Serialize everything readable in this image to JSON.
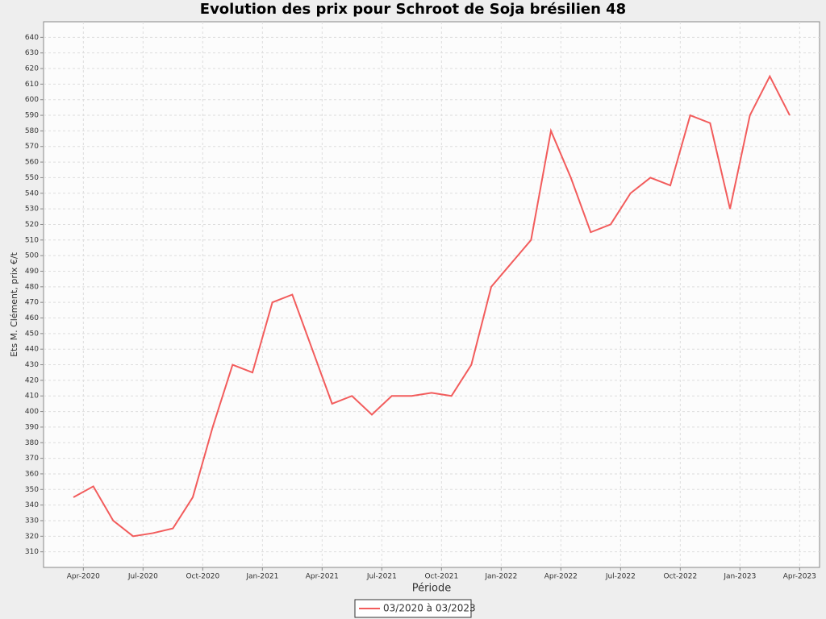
{
  "chart_data": {
    "type": "line",
    "title": "Evolution des prix pour Schroot de Soja brésilien 48",
    "x_label": "Période",
    "y_label": "Ets M. Clément, prix €/t",
    "x": [
      "2020-03",
      "2020-04",
      "2020-05",
      "2020-06",
      "2020-07",
      "2020-08",
      "2020-09",
      "2020-10",
      "2020-11",
      "2020-12",
      "2021-01",
      "2021-02",
      "2021-03",
      "2021-04",
      "2021-05",
      "2021-06",
      "2021-07",
      "2021-08",
      "2021-09",
      "2021-10",
      "2021-11",
      "2021-12",
      "2022-01",
      "2022-02",
      "2022-03",
      "2022-04",
      "2022-05",
      "2022-06",
      "2022-07",
      "2022-08",
      "2022-09",
      "2022-10",
      "2022-11",
      "2022-12",
      "2023-01",
      "2023-02",
      "2023-03"
    ],
    "series": [
      {
        "name": "03/2020 à 03/2023",
        "color": "#f25c5c",
        "values": [
          345,
          352,
          330,
          320,
          322,
          325,
          345,
          390,
          430,
          425,
          470,
          475,
          440,
          405,
          410,
          398,
          410,
          410,
          412,
          410,
          430,
          480,
          495,
          510,
          580,
          550,
          515,
          520,
          540,
          550,
          545,
          590,
          585,
          530,
          590,
          615,
          590
        ]
      }
    ],
    "xlim": [
      "2020-02",
      "2023-05"
    ],
    "xticks": [
      {
        "value": "2020-04",
        "label": "Apr-2020"
      },
      {
        "value": "2020-07",
        "label": "Jul-2020"
      },
      {
        "value": "2020-10",
        "label": "Oct-2020"
      },
      {
        "value": "2021-01",
        "label": "Jan-2021"
      },
      {
        "value": "2021-04",
        "label": "Apr-2021"
      },
      {
        "value": "2021-07",
        "label": "Jul-2021"
      },
      {
        "value": "2021-10",
        "label": "Oct-2021"
      },
      {
        "value": "2022-01",
        "label": "Jan-2022"
      },
      {
        "value": "2022-04",
        "label": "Apr-2022"
      },
      {
        "value": "2022-07",
        "label": "Jul-2022"
      },
      {
        "value": "2022-10",
        "label": "Oct-2022"
      },
      {
        "value": "2023-01",
        "label": "Jan-2023"
      },
      {
        "value": "2023-04",
        "label": "Apr-2023"
      }
    ],
    "ylim": [
      300,
      650
    ],
    "yticks": [
      310,
      320,
      330,
      340,
      350,
      360,
      370,
      380,
      390,
      400,
      410,
      420,
      430,
      440,
      450,
      460,
      470,
      480,
      490,
      500,
      510,
      520,
      530,
      540,
      550,
      560,
      570,
      580,
      590,
      600,
      610,
      620,
      630,
      640
    ],
    "grid": true
  }
}
